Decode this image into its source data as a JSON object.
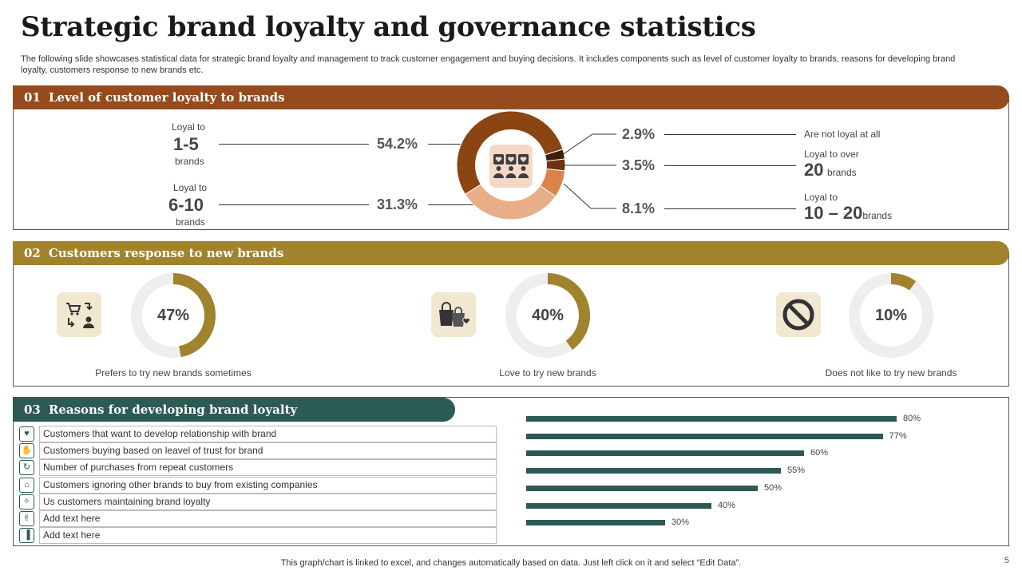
{
  "title": "Strategic brand loyalty and governance statistics",
  "subtitle": "The following slide showcases statistical data for strategic brand loyalty and management to track customer engagement and buying decisions. It includes components such as level of customer loyalty to brands, reasons for developing brand loyalty, customers response to new brands etc.",
  "section1": {
    "num": "01",
    "title": "Level of customer loyalty to brands",
    "left": [
      {
        "pre": "Loyal to",
        "big": "1-5",
        "post": "brands",
        "pct": "54.2%"
      },
      {
        "pre": "Loyal to",
        "big": "6-10",
        "post": "brands",
        "pct": "31.3%"
      }
    ],
    "right": [
      {
        "pct": "2.9%",
        "label": "Are not loyal at all"
      },
      {
        "pct": "3.5%",
        "pre": "Loyal to over",
        "big": "20",
        "post": "brands"
      },
      {
        "pct": "8.1%",
        "pre": "Loyal to",
        "big": "10 – 20",
        "post": "brands"
      }
    ],
    "donut": {
      "values": [
        54.2,
        31.3,
        8.1,
        3.5,
        2.9
      ],
      "colors": [
        "#8b4513",
        "#e8ae88",
        "#d9844d",
        "#6e3210",
        "#3e1d0a"
      ]
    }
  },
  "section2": {
    "num": "02",
    "title": "Customers response to new brands",
    "items": [
      {
        "pct": "47%",
        "value": 47,
        "caption": "Prefers to try new brands sometimes",
        "icon": "cart-user-exchange-icon"
      },
      {
        "pct": "40%",
        "value": 40,
        "caption": "Love to try new brands",
        "icon": "shopping-bags-icon"
      },
      {
        "pct": "10%",
        "value": 10,
        "caption": "Does not like to try new brands",
        "icon": "prohibited-icon"
      }
    ],
    "colors": {
      "fill": "#a1822d",
      "track": "#eeeeee"
    }
  },
  "section3": {
    "num": "03",
    "title": "Reasons for developing brand loyalty",
    "reasons": [
      {
        "text": "Customers that want to develop relationship with brand",
        "value": 80,
        "label": "80%"
      },
      {
        "text": "Customers buying based on leavel of trust for brand",
        "value": 77,
        "label": "77%"
      },
      {
        "text": "Number of purchases from repeat customers",
        "value": 60,
        "label": "60%"
      },
      {
        "text": "Customers ignoring other brands to buy from existing companies",
        "value": 55,
        "label": "55%"
      },
      {
        "text": "Us customers maintaining brand loyalty",
        "value": 50,
        "label": "50%"
      },
      {
        "text": "Add text here",
        "value": 40,
        "label": "40%"
      },
      {
        "text": "Add text here",
        "value": 30,
        "label": "30%"
      }
    ],
    "bar_color": "#2c5a54"
  },
  "footer": "This graph/chart is linked to excel, and changes automatically based on data. Just left click on it and select “Edit Data”.",
  "page_number": "5"
}
